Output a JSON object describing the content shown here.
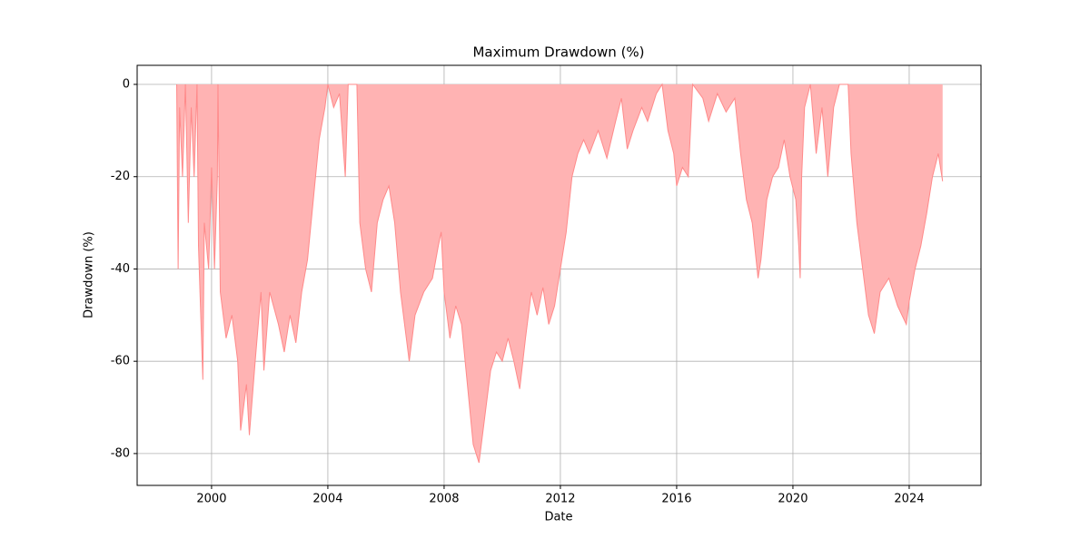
{
  "chart_data": {
    "type": "area",
    "title": "Maximum Drawdown (%)",
    "x_label": "Date",
    "y_label": "Drawdown (%)",
    "xlim": [
      1997.44,
      2026.47
    ],
    "ylim": [
      -86.9,
      4.13
    ],
    "xticks": [
      2000,
      2004,
      2008,
      2012,
      2016,
      2020,
      2024
    ],
    "yticks": [
      0,
      -20,
      -40,
      -60,
      -80
    ],
    "grid": true,
    "color": "#ffb3b3",
    "line_color": "#ff8a8a",
    "x": [
      1998.8,
      1998.85,
      1998.9,
      1999.0,
      1999.1,
      1999.2,
      1999.3,
      1999.4,
      1999.5,
      1999.55,
      1999.7,
      1999.75,
      1999.9,
      2000.0,
      2000.1,
      2000.2,
      2000.22,
      2000.3,
      2000.5,
      2000.7,
      2000.9,
      2001.0,
      2001.2,
      2001.3,
      2001.5,
      2001.7,
      2001.8,
      2002.0,
      2002.3,
      2002.5,
      2002.7,
      2002.9,
      2003.1,
      2003.3,
      2003.5,
      2003.7,
      2003.9,
      2004.0,
      2004.2,
      2004.4,
      2004.6,
      2004.7,
      2005.0,
      2005.1,
      2005.3,
      2005.5,
      2005.7,
      2005.9,
      2006.1,
      2006.3,
      2006.5,
      2006.7,
      2006.8,
      2007.0,
      2007.3,
      2007.6,
      2007.8,
      2007.9,
      2008.0,
      2008.2,
      2008.4,
      2008.6,
      2008.8,
      2009.0,
      2009.2,
      2009.4,
      2009.6,
      2009.8,
      2010.0,
      2010.2,
      2010.4,
      2010.6,
      2010.8,
      2011.0,
      2011.2,
      2011.4,
      2011.6,
      2011.8,
      2012.0,
      2012.2,
      2012.4,
      2012.6,
      2012.8,
      2013.0,
      2013.3,
      2013.6,
      2013.9,
      2014.1,
      2014.3,
      2014.5,
      2014.8,
      2015.0,
      2015.3,
      2015.5,
      2015.7,
      2015.9,
      2016.0,
      2016.2,
      2016.4,
      2016.55,
      2016.9,
      2017.1,
      2017.4,
      2017.7,
      2018.0,
      2018.2,
      2018.4,
      2018.6,
      2018.8,
      2018.9,
      2019.1,
      2019.3,
      2019.5,
      2019.7,
      2019.9,
      2020.1,
      2020.2,
      2020.25,
      2020.3,
      2020.4,
      2020.6,
      2020.8,
      2021.0,
      2021.2,
      2021.4,
      2021.6,
      2021.9,
      2022.0,
      2022.2,
      2022.4,
      2022.6,
      2022.8,
      2023.0,
      2023.3,
      2023.6,
      2023.9,
      2024.0,
      2024.2,
      2024.4,
      2024.6,
      2024.8,
      2025.0,
      2025.15
    ],
    "values": [
      0,
      -40,
      -5,
      -20,
      0,
      -30,
      -5,
      -20,
      0,
      -35,
      -64,
      -30,
      -40,
      -18,
      -40,
      -20,
      0,
      -45,
      -55,
      -50,
      -60,
      -75,
      -65,
      -76,
      -60,
      -45,
      -62,
      -45,
      -52,
      -58,
      -50,
      -56,
      -45,
      -38,
      -25,
      -12,
      -5,
      0,
      -5,
      -2,
      -20,
      0,
      0,
      -30,
      -40,
      -45,
      -30,
      -25,
      -22,
      -30,
      -45,
      -55,
      -60,
      -50,
      -45,
      -42,
      -35,
      -32,
      -45,
      -55,
      -48,
      -52,
      -65,
      -78,
      -82,
      -72,
      -62,
      -58,
      -60,
      -55,
      -60,
      -66,
      -55,
      -45,
      -50,
      -44,
      -52,
      -48,
      -40,
      -32,
      -20,
      -15,
      -12,
      -15,
      -10,
      -16,
      -8,
      -3,
      -14,
      -10,
      -5,
      -8,
      -2,
      0,
      -10,
      -15,
      -22,
      -18,
      -20,
      0,
      -3,
      -8,
      -2,
      -6,
      -3,
      -15,
      -25,
      -30,
      -42,
      -38,
      -25,
      -20,
      -18,
      -12,
      -20,
      -25,
      -35,
      -42,
      -20,
      -5,
      0,
      -15,
      -5,
      -20,
      -5,
      0,
      0,
      -15,
      -30,
      -40,
      -50,
      -54,
      -45,
      -42,
      -48,
      -52,
      -47,
      -40,
      -35,
      -28,
      -20,
      -15,
      -21
    ]
  }
}
